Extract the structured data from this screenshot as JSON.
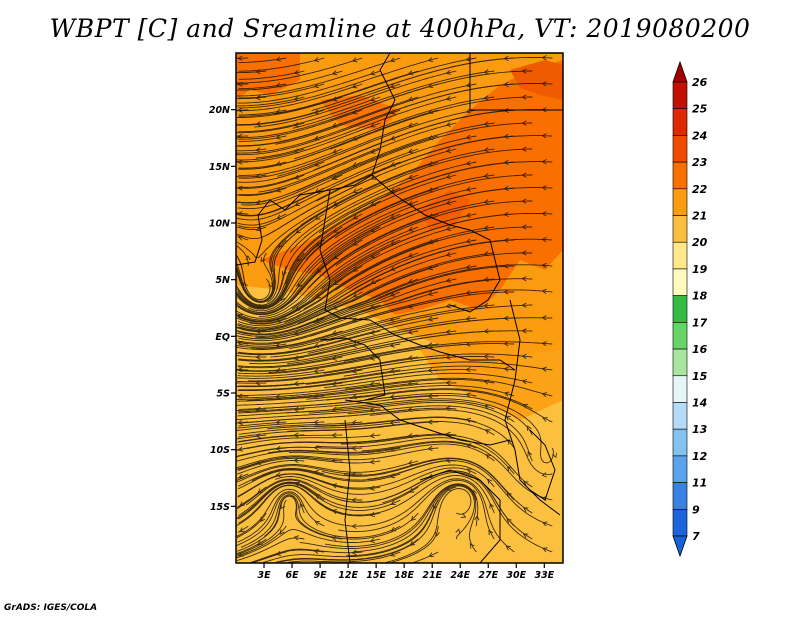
{
  "title": "WBPT [C] and Sreamline at 400hPa, VT: 2019080200",
  "credit": "GrADS: IGES/COLA",
  "map": {
    "lat_labels": [
      "20N",
      "15N",
      "10N",
      "5N",
      "EQ",
      "5S",
      "10S",
      "15S"
    ],
    "lat_values": [
      20,
      15,
      10,
      5,
      0,
      -5,
      -10,
      -15
    ],
    "lon_labels": [
      "3E",
      "6E",
      "9E",
      "12E",
      "15E",
      "18E",
      "21E",
      "24E",
      "27E",
      "30E",
      "33E"
    ],
    "lon_values": [
      3,
      6,
      9,
      12,
      15,
      18,
      21,
      24,
      27,
      30,
      33
    ],
    "lon_range": [
      0,
      35
    ],
    "lat_range": [
      -20,
      25
    ]
  },
  "colorbar": {
    "labels": [
      "26",
      "25",
      "24",
      "23",
      "22",
      "21",
      "20",
      "19",
      "18",
      "17",
      "16",
      "15",
      "14",
      "13",
      "12",
      "11",
      "9",
      "7"
    ],
    "colors": [
      "#a50000",
      "#c21000",
      "#dd2a00",
      "#f04a00",
      "#f97000",
      "#fb9c10",
      "#fcc040",
      "#fee88a",
      "#fffabe",
      "#33bb44",
      "#66d466",
      "#a8e6a0",
      "#e6f6f8",
      "#b4dcf8",
      "#86c2f0",
      "#5aa2ea",
      "#3a82e6",
      "#1c64dc",
      "#1464d8"
    ]
  }
}
